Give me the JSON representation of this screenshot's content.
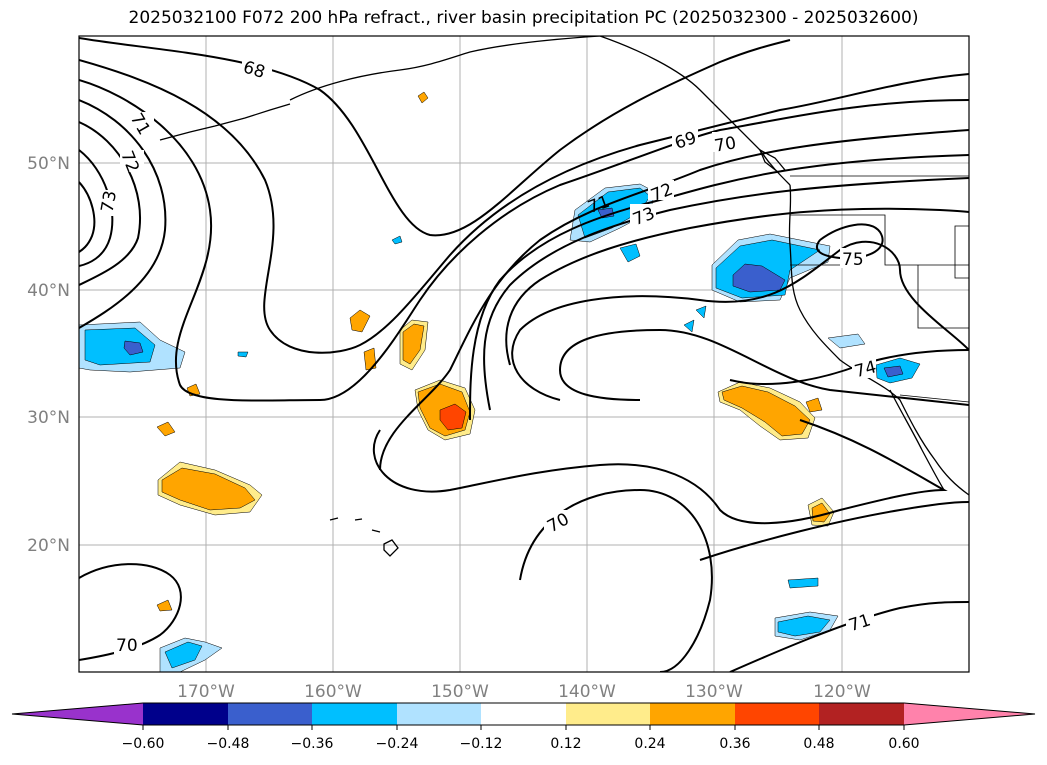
{
  "title": "2025032100 F072 200 hPa refract., river basin precipitation PC (2025032300 - 2025032600)",
  "map": {
    "lon_range": [
      -180,
      -110
    ],
    "lat_range": [
      10,
      60
    ],
    "lat_labels": [
      "50°N",
      "40°N",
      "30°N",
      "20°N"
    ],
    "lon_labels": [
      "170°W",
      "160°W",
      "150°W",
      "140°W",
      "130°W",
      "120°W"
    ],
    "contour_labels": [
      "68",
      "71",
      "72",
      "73",
      "69",
      "70",
      "71",
      "72",
      "73",
      "75",
      "74",
      "70",
      "70",
      "71"
    ],
    "contour_color": "#000000",
    "gridline_color": "#b0b0b0",
    "coastline_color": "#000000"
  },
  "colorbar": {
    "colors": [
      "#9932cc",
      "#00008b",
      "#3a5fcd",
      "#00bfff",
      "#b0e2ff",
      "#ffffff",
      "#ffec8b",
      "#ffa500",
      "#ff4500",
      "#b22222",
      "#ff82ab"
    ],
    "tick_labels": [
      "−0.60",
      "−0.48",
      "−0.36",
      "−0.24",
      "−0.12",
      "0.12",
      "0.24",
      "0.36",
      "0.48",
      "0.60"
    ]
  },
  "legend_colors": {
    "neg_light": "#b0e2ff",
    "neg_mid": "#00bfff",
    "neg_strong": "#3a5fcd",
    "pos_light": "#ffec8b",
    "pos_mid": "#ffa500",
    "pos_strong": "#ff4500"
  }
}
